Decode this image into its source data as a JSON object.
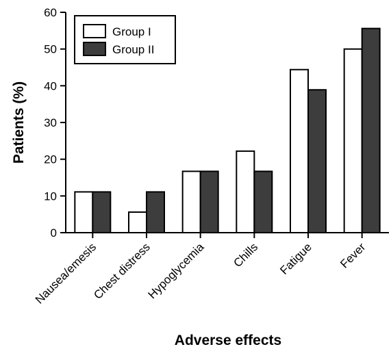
{
  "chart_data": {
    "type": "bar",
    "title": "",
    "xlabel": "Adverse effects",
    "ylabel": "Patients (%)",
    "ylim": [
      0,
      60
    ],
    "yticks": [
      0,
      10,
      20,
      30,
      40,
      50,
      60
    ],
    "categories": [
      "Nausea/emesis",
      "Chest distress",
      "Hypoglycemia",
      "Chills",
      "Fatigue",
      "Fever"
    ],
    "series": [
      {
        "name": "Group I",
        "values": [
          11.1,
          5.6,
          16.7,
          22.2,
          44.4,
          50.0
        ],
        "color": "#ffffff"
      },
      {
        "name": "Group II",
        "values": [
          11.1,
          11.1,
          16.7,
          16.7,
          38.9,
          55.6
        ],
        "color": "#3d3d3d"
      }
    ],
    "legend": "top-left",
    "grid": false
  }
}
